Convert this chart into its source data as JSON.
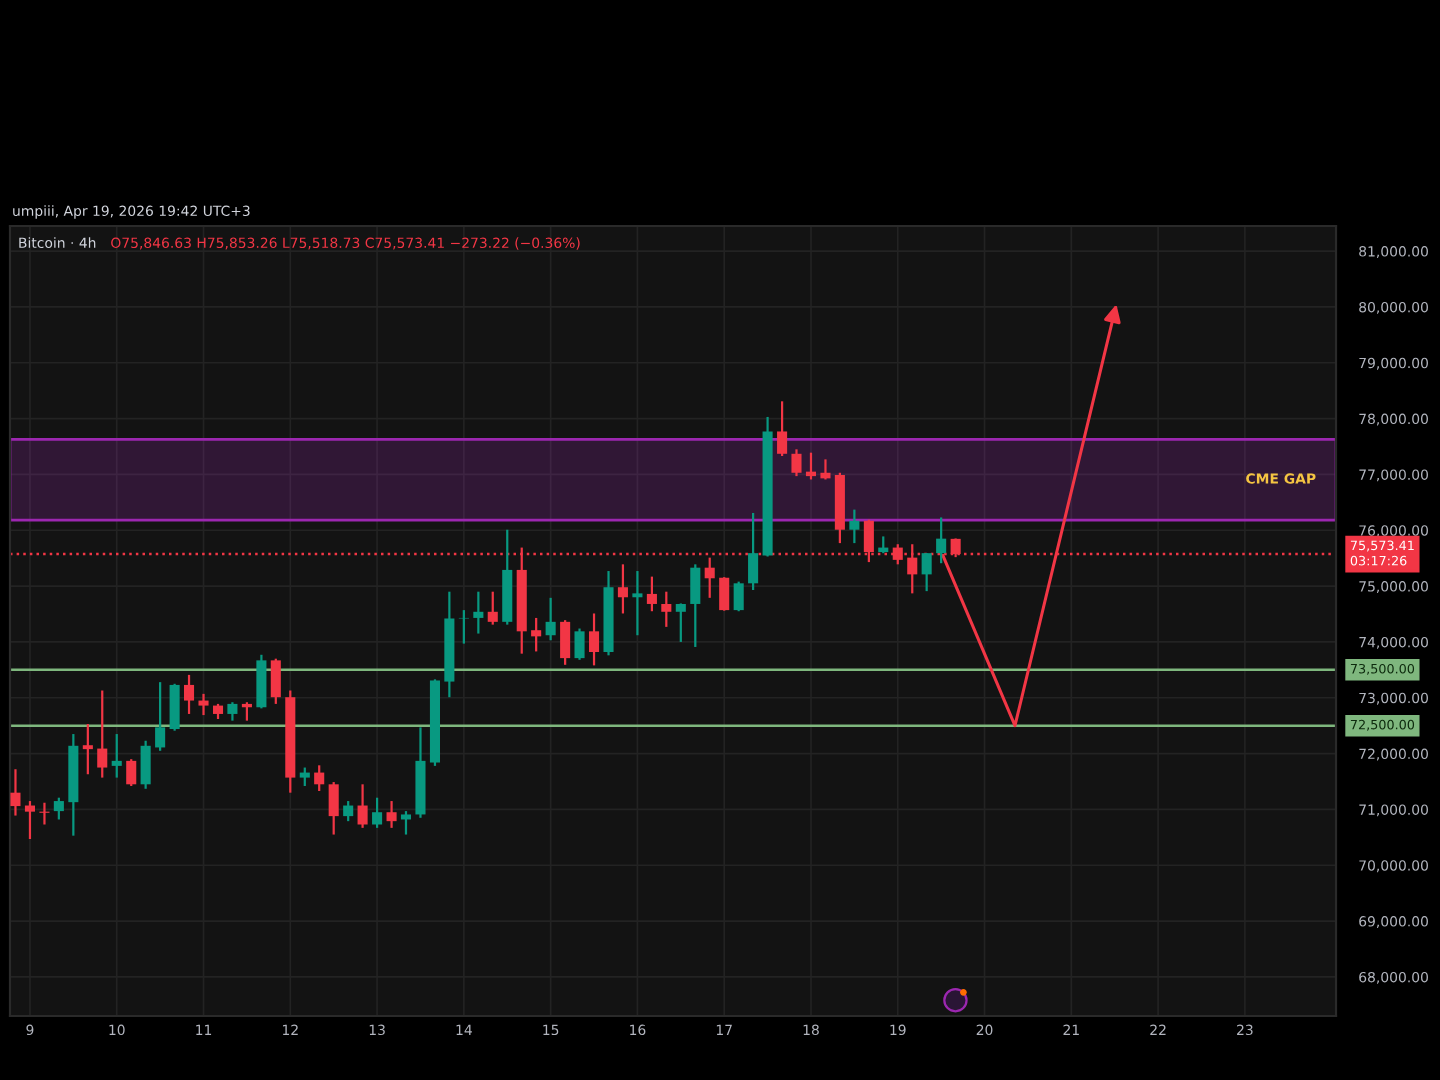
{
  "chart_data": {
    "type": "candlestick",
    "title": "Bitcoin · 4h",
    "subtitle": "O75,846.63 H75,853.26 L75,518.73 C75,573.41 −273.22 (−0.36%)",
    "annotations": [
      "umpiii, Apr 19, 2026 19:42 UTC+3"
    ],
    "x": [
      8.833,
      9,
      9.167,
      9.333,
      9.5,
      9.667,
      9.833,
      10,
      10.167,
      10.333,
      10.5,
      10.667,
      10.833,
      11,
      11.167,
      11.333,
      11.5,
      11.667,
      11.833,
      12,
      12.167,
      12.333,
      12.5,
      12.667,
      12.833,
      13,
      13.167,
      13.333,
      13.5,
      13.667,
      13.833,
      14,
      14.167,
      14.333,
      14.5,
      14.667,
      14.833,
      15,
      15.167,
      15.333,
      15.5,
      15.667,
      15.833,
      16,
      16.167,
      16.333,
      16.5,
      16.667,
      16.833,
      17,
      17.167,
      17.333,
      17.5,
      17.667,
      17.833,
      18,
      18.167,
      18.333,
      18.5,
      18.667,
      18.833,
      19,
      19.167,
      19.333,
      19.5,
      19.667
    ],
    "ohlc": [
      [
        71300,
        71720,
        70890,
        71060
      ],
      [
        71070,
        71150,
        70470,
        70960
      ],
      [
        70960,
        71120,
        70730,
        70940
      ],
      [
        70970,
        71210,
        70820,
        71150
      ],
      [
        71130,
        72350,
        70530,
        72140
      ],
      [
        72150,
        72530,
        71630,
        72080
      ],
      [
        72090,
        73130,
        71570,
        71750
      ],
      [
        71780,
        72350,
        71570,
        71870
      ],
      [
        71870,
        71900,
        71420,
        71450
      ],
      [
        71450,
        72230,
        71370,
        72140
      ],
      [
        72110,
        73280,
        72050,
        72470
      ],
      [
        72440,
        73250,
        72410,
        73230
      ],
      [
        73230,
        73410,
        72710,
        72950
      ],
      [
        72950,
        73070,
        72690,
        72860
      ],
      [
        72860,
        72890,
        72620,
        72710
      ],
      [
        72710,
        72920,
        72590,
        72890
      ],
      [
        72890,
        72920,
        72590,
        72830
      ],
      [
        72830,
        73770,
        72810,
        73670
      ],
      [
        73670,
        73700,
        72890,
        73010
      ],
      [
        73010,
        73130,
        71300,
        71570
      ],
      [
        71570,
        71750,
        71420,
        71660
      ],
      [
        71660,
        71790,
        71330,
        71450
      ],
      [
        71450,
        71490,
        70550,
        70880
      ],
      [
        70880,
        71150,
        70790,
        71070
      ],
      [
        71070,
        71450,
        70670,
        70730
      ],
      [
        70730,
        71210,
        70670,
        70950
      ],
      [
        70950,
        71150,
        70670,
        70790
      ],
      [
        70820,
        70970,
        70550,
        70910
      ],
      [
        70910,
        72470,
        70850,
        71870
      ],
      [
        71840,
        73330,
        71780,
        73310
      ],
      [
        73290,
        74900,
        73010,
        74420
      ],
      [
        74420,
        74570,
        73970,
        74430
      ],
      [
        74430,
        74900,
        74150,
        74540
      ],
      [
        74540,
        74900,
        74310,
        74360
      ],
      [
        74360,
        76010,
        74310,
        75290
      ],
      [
        75290,
        75690,
        73790,
        74190
      ],
      [
        74210,
        74430,
        73830,
        74100
      ],
      [
        74120,
        74790,
        74030,
        74360
      ],
      [
        74360,
        74390,
        73590,
        73710
      ],
      [
        73710,
        74240,
        73680,
        74190
      ],
      [
        74190,
        74510,
        73580,
        73820
      ],
      [
        73820,
        75270,
        73760,
        74980
      ],
      [
        74980,
        75390,
        74510,
        74800
      ],
      [
        74800,
        75270,
        74120,
        74870
      ],
      [
        74860,
        75170,
        74550,
        74680
      ],
      [
        74680,
        74900,
        74270,
        74540
      ],
      [
        74540,
        74690,
        74000,
        74680
      ],
      [
        74680,
        75390,
        73910,
        75330
      ],
      [
        75330,
        75510,
        74790,
        75140
      ],
      [
        75150,
        75160,
        74560,
        74570
      ],
      [
        74570,
        75080,
        74550,
        75050
      ],
      [
        75050,
        76310,
        74930,
        75590
      ],
      [
        75550,
        78030,
        75530,
        77770
      ],
      [
        77770,
        78310,
        77330,
        77370
      ],
      [
        77370,
        77450,
        76970,
        77030
      ],
      [
        77050,
        77390,
        76910,
        76970
      ],
      [
        77030,
        77270,
        76910,
        76930
      ],
      [
        76990,
        77030,
        75770,
        76010
      ],
      [
        76010,
        76370,
        75770,
        76170
      ],
      [
        76170,
        76190,
        75430,
        75610
      ],
      [
        75610,
        75890,
        75590,
        75690
      ],
      [
        75690,
        75750,
        75390,
        75470
      ],
      [
        75510,
        75750,
        74870,
        75210
      ],
      [
        75210,
        75590,
        74910,
        75590
      ],
      [
        75590,
        76230,
        75410,
        75850
      ],
      [
        75846.63,
        75853.26,
        75518.73,
        75573.41
      ]
    ],
    "colors": [
      "#f23645",
      "#f23645",
      "#f23645",
      "#089981",
      "#089981",
      "#f23645",
      "#f23645",
      "#089981",
      "#f23645",
      "#089981",
      "#089981",
      "#089981",
      "#f23645",
      "#f23645",
      "#f23645",
      "#089981",
      "#f23645",
      "#089981",
      "#f23645",
      "#f23645",
      "#089981",
      "#f23645",
      "#f23645",
      "#089981",
      "#f23645",
      "#089981",
      "#f23645",
      "#089981",
      "#089981",
      "#089981",
      "#089981",
      "#089981",
      "#089981",
      "#f23645",
      "#089981",
      "#f23645",
      "#f23645",
      "#089981",
      "#f23645",
      "#089981",
      "#f23645",
      "#089981",
      "#f23645",
      "#089981",
      "#f23645",
      "#f23645",
      "#089981",
      "#089981",
      "#f23645",
      "#f23645",
      "#089981",
      "#089981",
      "#089981",
      "#f23645",
      "#f23645",
      "#f23645",
      "#f23645",
      "#f23645",
      "#089981",
      "#f23645",
      "#089981",
      "#f23645",
      "#f23645",
      "#089981",
      "#089981",
      "#f23645"
    ],
    "ref_lines": [
      {
        "axis": "y",
        "value": 73500,
        "label": "73,500.00",
        "color": "#7fb77e"
      },
      {
        "axis": "y",
        "value": 72500,
        "label": "72,500.00",
        "color": "#7fb77e"
      },
      {
        "axis": "y",
        "value": 75573.41,
        "label": "75,573.41\n03:17:26",
        "color": "#f23645",
        "line_style": "dotted"
      }
    ],
    "bands": [
      {
        "axis": "y",
        "from": 76180,
        "to": 77630,
        "label": "CME GAP",
        "color": "#9c27b0"
      }
    ],
    "xlim": [
      8.77,
      24.05
    ],
    "xticks": [
      9,
      10,
      11,
      12,
      13,
      14,
      15,
      16,
      17,
      18,
      19,
      20,
      21,
      22,
      23
    ],
    "ylim": [
      67300,
      81450
    ],
    "yticks": [
      {
        "value": 68000,
        "label": "68,000.00"
      },
      {
        "value": 69000,
        "label": "69,000.00"
      },
      {
        "value": 70000,
        "label": "70,000.00"
      },
      {
        "value": 71000,
        "label": "71,000.00"
      },
      {
        "value": 72000,
        "label": "72,000.00"
      },
      {
        "value": 73000,
        "label": "73,000.00"
      },
      {
        "value": 74000,
        "label": "74,000.00"
      },
      {
        "value": 75000,
        "label": "75,000.00"
      },
      {
        "value": 76000,
        "label": "76,000.00"
      },
      {
        "value": 77000,
        "label": "77,000.00"
      },
      {
        "value": 78000,
        "label": "78,000.00"
      },
      {
        "value": 79000,
        "label": "79,000.00"
      },
      {
        "value": 80000,
        "label": "80,000.00"
      },
      {
        "value": 81000,
        "label": "81,000.00"
      }
    ],
    "grid": true
  }
}
